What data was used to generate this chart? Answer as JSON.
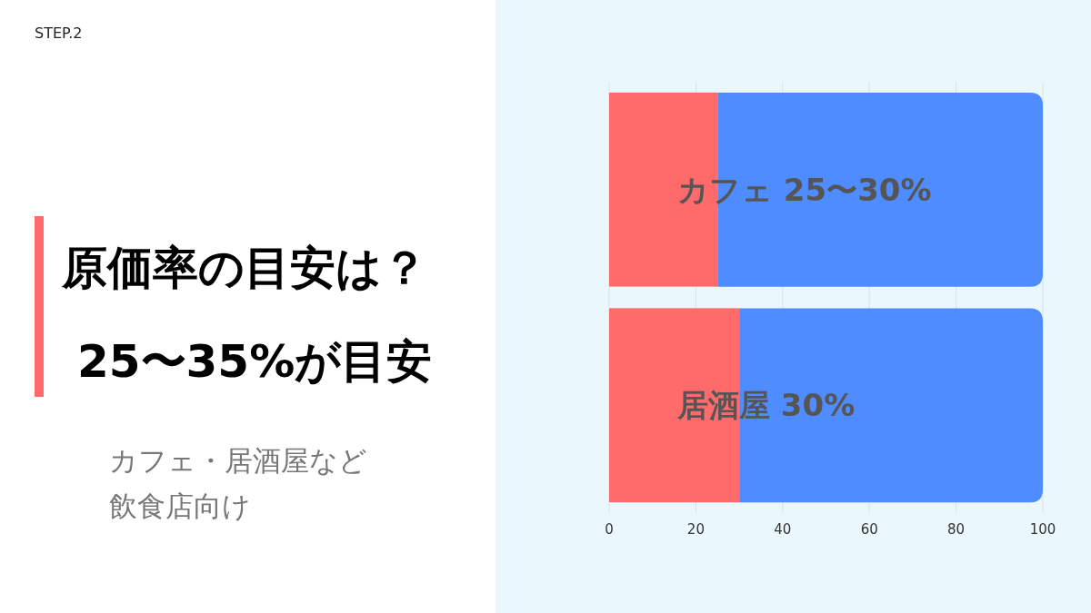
{
  "chart_data": {
    "type": "bar",
    "orientation": "horizontal",
    "stacked": true,
    "title": "原価率の目安は？\n25〜35%が目安",
    "subtitle": "カフェ・居酒屋など飲食店向け",
    "annotations": [
      "STEP.2"
    ],
    "categories": [
      "カフェ 25〜30%",
      "居酒屋 30%"
    ],
    "series": [
      {
        "color": "#ff6b6b",
        "values": [
          25,
          30
        ]
      },
      {
        "color": "#4f8cff",
        "values": [
          75,
          70
        ]
      }
    ],
    "xlim": [
      0,
      100
    ],
    "xticks": [
      0,
      20,
      40,
      60,
      80,
      100
    ],
    "grid": "x"
  }
}
